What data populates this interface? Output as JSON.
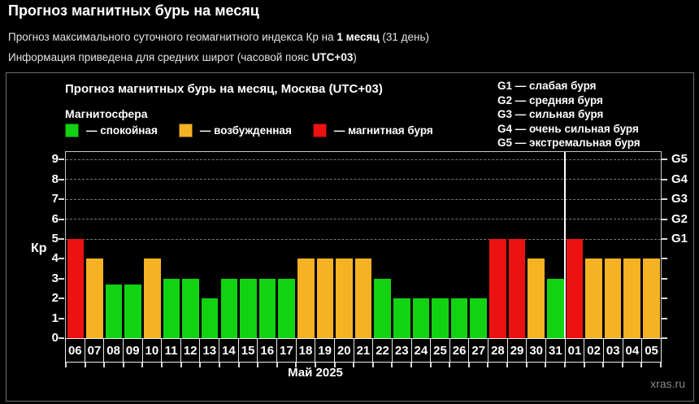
{
  "page": {
    "title": "Прогноз магнитных бурь на месяц",
    "subtitle1": {
      "prefix": "Прогноз максимального суточного геомагнитного индекса Кр на ",
      "bold": "1 месяц",
      "suffix": " (31 день)"
    },
    "subtitle2": {
      "prefix": "Информация приведена для средних широт (часовой пояс ",
      "bold": "UTC+03",
      "suffix": ")"
    }
  },
  "chart": {
    "title": "Прогноз магнитных бурь на месяц, Москва (UTC+03)",
    "legend_title": "Магнитосфера",
    "legend": [
      {
        "status": "quiet",
        "label": "— спокойная",
        "color": "#12d312"
      },
      {
        "status": "excited",
        "label": "— возбужденная",
        "color": "#f5b223"
      },
      {
        "status": "storm",
        "label": "— магнитная буря",
        "color": "#ec1212"
      }
    ],
    "g_legend": [
      "G1 — слабая буря",
      "G2 — средняя буря",
      "G3 — сильная буря",
      "G4 — очень сильная буря",
      "G5 — экстремальная буря"
    ],
    "ylabel": "Кр",
    "month_label": "Май 2025",
    "watermark": "xras.ru"
  },
  "chart_data": {
    "type": "bar",
    "title": "Прогноз магнитных бурь на месяц, Москва (UTC+03)",
    "xlabel": "Май 2025",
    "ylabel": "Кр",
    "ylim": [
      0,
      9
    ],
    "yticks": [
      0,
      1,
      2,
      3,
      4,
      5,
      6,
      7,
      8,
      9
    ],
    "right_axis": [
      {
        "kp": 5,
        "label": "G1"
      },
      {
        "kp": 6,
        "label": "G2"
      },
      {
        "kp": 7,
        "label": "G3"
      },
      {
        "kp": 8,
        "label": "G4"
      },
      {
        "kp": 9,
        "label": "G5"
      }
    ],
    "grid": "dashed horizontal lines at Kp 5–9",
    "categories": [
      "06",
      "07",
      "08",
      "09",
      "10",
      "11",
      "12",
      "13",
      "14",
      "15",
      "16",
      "17",
      "18",
      "19",
      "20",
      "21",
      "22",
      "23",
      "24",
      "25",
      "26",
      "27",
      "28",
      "29",
      "30",
      "31",
      "01",
      "02",
      "03",
      "04",
      "05"
    ],
    "values": [
      5,
      4,
      2.7,
      2.7,
      4,
      3,
      3,
      2,
      3,
      3,
      3,
      3,
      4,
      4,
      4,
      4,
      3,
      2,
      2,
      2,
      2,
      2,
      5,
      5,
      4,
      3,
      5,
      4,
      4,
      4,
      4
    ],
    "statuses": [
      "storm",
      "excited",
      "quiet",
      "quiet",
      "excited",
      "quiet",
      "quiet",
      "quiet",
      "quiet",
      "quiet",
      "quiet",
      "quiet",
      "excited",
      "excited",
      "excited",
      "excited",
      "quiet",
      "quiet",
      "quiet",
      "quiet",
      "quiet",
      "quiet",
      "storm",
      "storm",
      "excited",
      "quiet",
      "storm",
      "excited",
      "excited",
      "excited",
      "excited"
    ],
    "month_divider_after_index": 25
  }
}
